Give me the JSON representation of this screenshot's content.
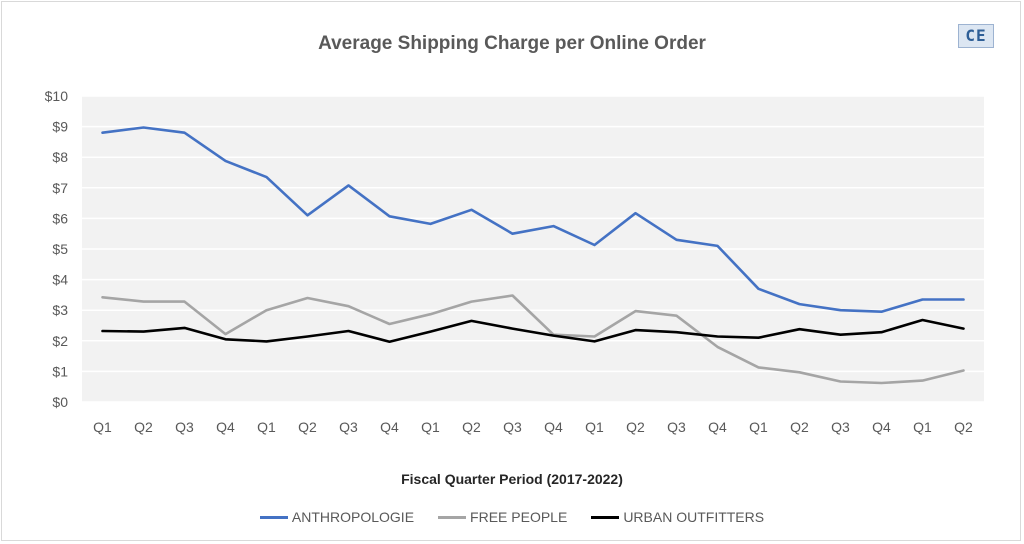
{
  "chart_data": {
    "type": "line",
    "title": "Average Shipping Charge per Online Order",
    "xlabel": "Fiscal Quarter Period (2017-2022)",
    "ylabel": "",
    "categories": [
      "Q1",
      "Q2",
      "Q3",
      "Q4",
      "Q1",
      "Q2",
      "Q3",
      "Q4",
      "Q1",
      "Q2",
      "Q3",
      "Q4",
      "Q1",
      "Q2",
      "Q3",
      "Q4",
      "Q1",
      "Q2",
      "Q3",
      "Q4",
      "Q1",
      "Q2"
    ],
    "yticks": [
      "$0",
      "$1",
      "$2",
      "$3",
      "$4",
      "$5",
      "$6",
      "$7",
      "$8",
      "$9",
      "$10"
    ],
    "ylim": [
      0,
      10
    ],
    "grid": true,
    "legend_position": "bottom",
    "series": [
      {
        "name": "ANTHROPOLOGIE",
        "color": "#4472c4",
        "values": [
          8.8,
          8.97,
          8.8,
          7.88,
          7.35,
          6.1,
          7.08,
          6.07,
          5.82,
          6.28,
          5.5,
          5.75,
          5.13,
          6.17,
          5.3,
          5.1,
          3.7,
          3.2,
          3.0,
          2.95,
          3.35,
          3.35
        ]
      },
      {
        "name": "FREE PEOPLE",
        "color": "#a5a5a5",
        "values": [
          3.42,
          3.28,
          3.28,
          2.22,
          3.0,
          3.4,
          3.13,
          2.55,
          2.87,
          3.28,
          3.48,
          2.2,
          2.14,
          2.97,
          2.82,
          1.8,
          1.13,
          0.97,
          0.67,
          0.62,
          0.7,
          1.03
        ]
      },
      {
        "name": "URBAN OUTFITTERS",
        "color": "#000000",
        "values": [
          2.32,
          2.3,
          2.42,
          2.05,
          1.98,
          2.14,
          2.32,
          1.97,
          2.3,
          2.65,
          2.4,
          2.17,
          1.98,
          2.35,
          2.28,
          2.14,
          2.1,
          2.38,
          2.2,
          2.28,
          2.68,
          2.4
        ]
      }
    ]
  },
  "brand_logo": "CE"
}
